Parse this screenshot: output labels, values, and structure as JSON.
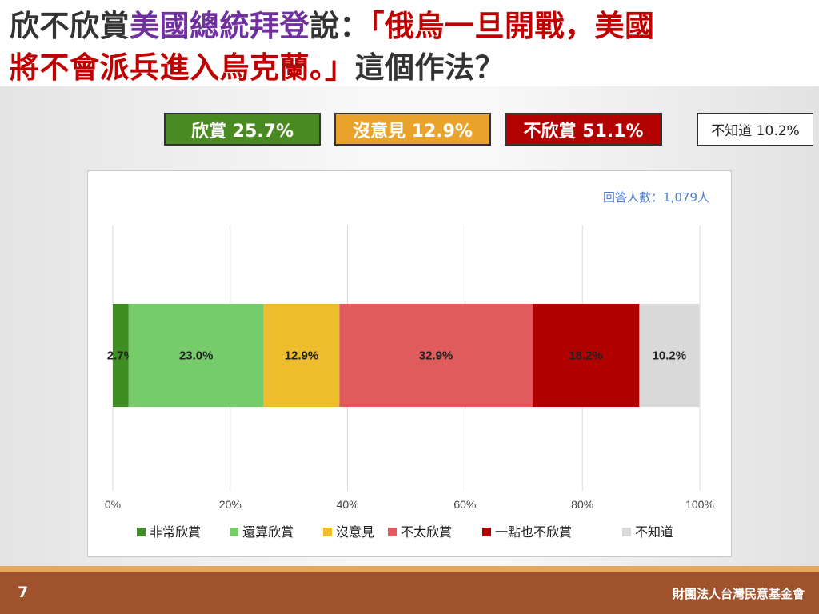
{
  "title": {
    "line1": [
      {
        "text": "欣不欣賞",
        "color": "dark"
      },
      {
        "text": "美國總統拜登",
        "color": "purple"
      },
      {
        "text": "說：",
        "color": "dark"
      },
      {
        "text": "「俄烏一旦開戰，美國",
        "color": "red"
      }
    ],
    "line2": [
      {
        "text": "將不會派兵進入烏克蘭。」",
        "color": "red"
      },
      {
        "text": "這個作法？",
        "color": "dark"
      }
    ]
  },
  "summary": [
    {
      "label": "欣賞 25.7%",
      "color": "#4a8a22"
    },
    {
      "label": "沒意見 12.9%",
      "color": "#e9a22a"
    },
    {
      "label": "不欣賞 51.1%",
      "color": "#b30000"
    },
    {
      "label": "不知道 10.2%",
      "color": "#ffffff"
    }
  ],
  "respondents": "回答人數：1,079人",
  "chart_data": {
    "type": "bar",
    "orientation": "horizontal",
    "stacked": true,
    "categories": [
      ""
    ],
    "series": [
      {
        "name": "非常欣賞",
        "values": [
          2.7
        ],
        "label": "2.7%",
        "color": "#3e8e22"
      },
      {
        "name": "還算欣賞",
        "values": [
          23.0
        ],
        "label": "23.0%",
        "color": "#76cc6a"
      },
      {
        "name": "沒意見",
        "values": [
          12.9
        ],
        "label": "12.9%",
        "color": "#eebd2d"
      },
      {
        "name": "不太欣賞",
        "values": [
          32.9
        ],
        "label": "32.9%",
        "color": "#e05b5b"
      },
      {
        "name": "一點也不欣賞",
        "values": [
          18.2
        ],
        "label": "18.2%",
        "color": "#b00000"
      },
      {
        "name": "不知道",
        "values": [
          10.2
        ],
        "label": "10.2%",
        "color": "#d9d9d9"
      }
    ],
    "xlim": [
      0,
      100
    ],
    "xticks": [
      "0%",
      "20%",
      "40%",
      "60%",
      "80%",
      "100%"
    ],
    "xtick_values": [
      0,
      20,
      40,
      60,
      80,
      100
    ],
    "grid": true,
    "legend": "bottom"
  },
  "footer": {
    "page_number": "7",
    "organization": "財團法人台灣民意基金會"
  }
}
